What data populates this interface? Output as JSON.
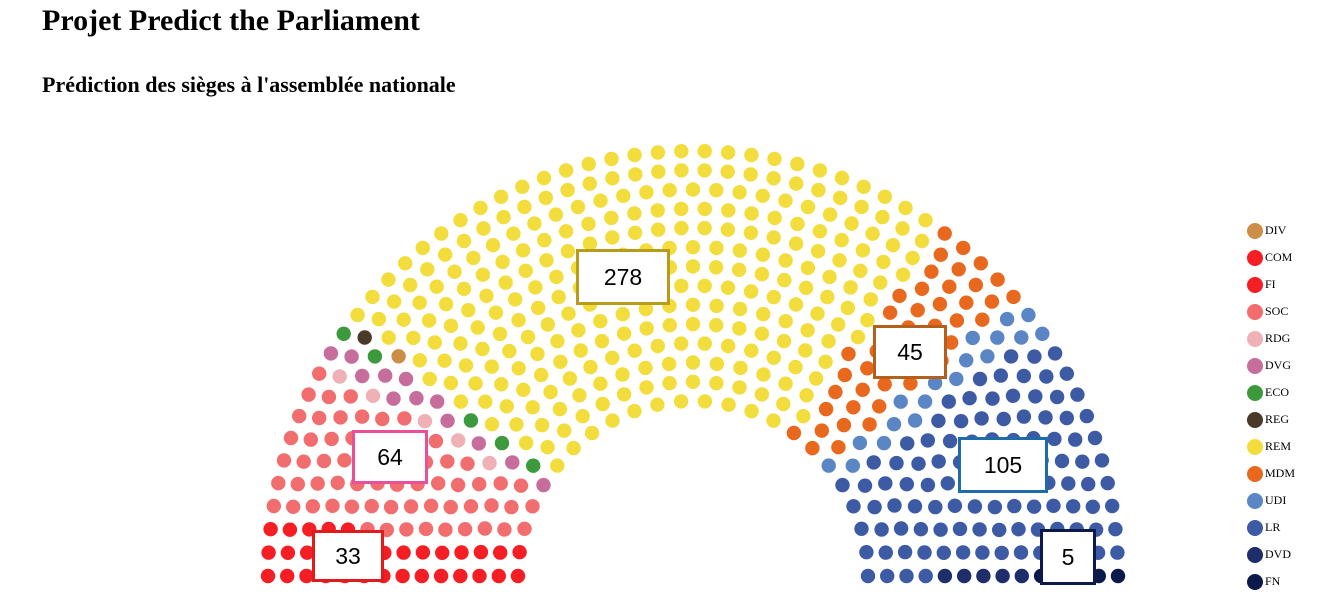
{
  "title": "Projet Predict the Parliament",
  "subtitle": "Prédiction des sièges à l'assemblée nationale",
  "chart_data": {
    "type": "parliament",
    "total_seats": 577,
    "parties": [
      {
        "name": "FI",
        "seats": 33,
        "color": "#f51e24",
        "label": "33",
        "box_color": "#e01b1b"
      },
      {
        "name": "SOC",
        "seats": 64,
        "color": "#f26d6e",
        "label": "64",
        "box_color": "#ea4f9a"
      },
      {
        "name": "RDG",
        "seats": 5,
        "color": "#efb1b6"
      },
      {
        "name": "DVG",
        "seats": 12,
        "color": "#c76d9b"
      },
      {
        "name": "COM",
        "seats": 0,
        "color": "#f51e24"
      },
      {
        "name": "ECO",
        "seats": 5,
        "color": "#3c9a3c"
      },
      {
        "name": "REG",
        "seats": 1,
        "color": "#4a3a2a"
      },
      {
        "name": "DIV",
        "seats": 1,
        "color": "#cc8e46"
      },
      {
        "name": "REM",
        "seats": 278,
        "color": "#f2dd3c",
        "label": "278",
        "box_color": "#b89a1c"
      },
      {
        "name": "MDM",
        "seats": 45,
        "color": "#e8691e",
        "label": "45",
        "box_color": "#b3601c"
      },
      {
        "name": "UDI",
        "seats": 18,
        "color": "#5b86c6"
      },
      {
        "name": "LR",
        "seats": 105,
        "color": "#3d5aa5",
        "label": "105",
        "box_color": "#1f6aa8"
      },
      {
        "name": "DVD",
        "seats": 5,
        "color": "#1d2e6b"
      },
      {
        "name": "FN",
        "seats": 5,
        "color": "#0b1a4a",
        "label": "5",
        "box_color": "#0b1a4a"
      }
    ],
    "legend": [
      {
        "name": "DIV",
        "color": "#cc8e46"
      },
      {
        "name": "COM",
        "color": "#f51e24"
      },
      {
        "name": "FI",
        "color": "#f51e24"
      },
      {
        "name": "SOC",
        "color": "#f26d6e"
      },
      {
        "name": "RDG",
        "color": "#efb1b6"
      },
      {
        "name": "DVG",
        "color": "#c76d9b"
      },
      {
        "name": "ECO",
        "color": "#3c9a3c"
      },
      {
        "name": "REG",
        "color": "#4a3a2a"
      },
      {
        "name": "REM",
        "color": "#f2dd3c"
      },
      {
        "name": "MDM",
        "color": "#e8691e"
      },
      {
        "name": "UDI",
        "color": "#5b86c6"
      },
      {
        "name": "LR",
        "color": "#3d5aa5"
      },
      {
        "name": "DVD",
        "color": "#1d2e6b"
      },
      {
        "name": "FN",
        "color": "#0b1a4a"
      }
    ],
    "legend_placement": "right"
  }
}
